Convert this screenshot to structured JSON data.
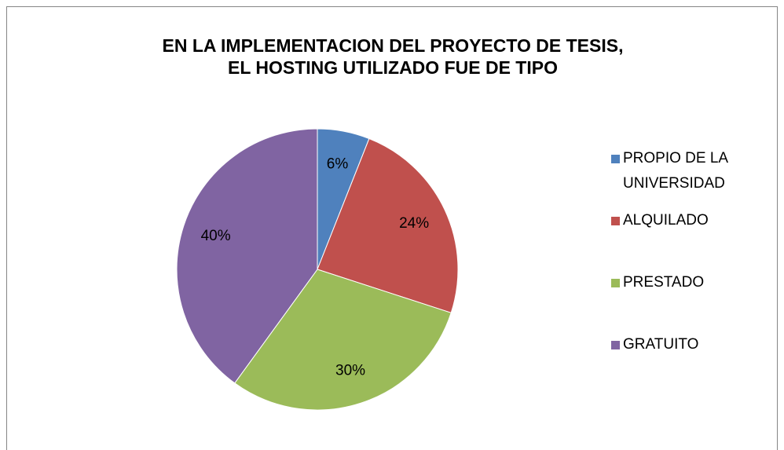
{
  "chart_data": {
    "type": "pie",
    "title": [
      "EN LA IMPLEMENTACION DEL PROYECTO DE  TESIS,",
      "EL HOSTING UTILIZADO FUE DE TIPO"
    ],
    "categories": [
      "PROPIO DE LA UNIVERSIDAD",
      "ALQUILADO",
      "PRESTADO",
      "GRATUITO"
    ],
    "values": [
      6,
      24,
      30,
      40
    ],
    "value_labels": [
      "6%",
      "24%",
      "30%",
      "40%"
    ],
    "colors": [
      "#4f81bd",
      "#c0504d",
      "#9bbb59",
      "#8064a2"
    ],
    "legend": "right"
  }
}
